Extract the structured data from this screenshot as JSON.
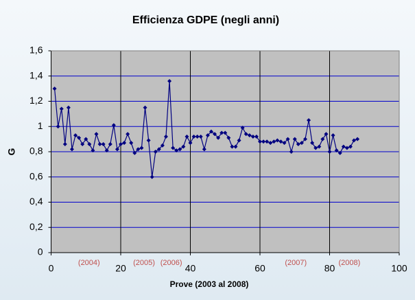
{
  "chart_data": {
    "type": "line",
    "title": "Efficienza GDPE (negli anni)",
    "x_label": "Prove (2003 al 2008)",
    "y_label": "G",
    "x": [
      1,
      2,
      3,
      4,
      5,
      6,
      7,
      8,
      9,
      10,
      11,
      12,
      13,
      14,
      15,
      16,
      17,
      18,
      19,
      20,
      21,
      22,
      23,
      24,
      25,
      26,
      27,
      28,
      29,
      30,
      31,
      32,
      33,
      34,
      35,
      36,
      37,
      38,
      39,
      40,
      41,
      42,
      43,
      44,
      45,
      46,
      47,
      48,
      49,
      50,
      51,
      52,
      53,
      54,
      55,
      56,
      57,
      58,
      59,
      60,
      61,
      62,
      63,
      64,
      65,
      66,
      67,
      68,
      69,
      70,
      71,
      72,
      73,
      74,
      75,
      76,
      77,
      78,
      79,
      80,
      81,
      82,
      83,
      84,
      85,
      86,
      87,
      88
    ],
    "values": [
      1.3,
      1.0,
      1.14,
      0.86,
      1.15,
      0.82,
      0.93,
      0.91,
      0.86,
      0.9,
      0.86,
      0.81,
      0.94,
      0.86,
      0.86,
      0.81,
      0.86,
      1.01,
      0.82,
      0.86,
      0.87,
      0.94,
      0.87,
      0.79,
      0.82,
      0.83,
      1.15,
      0.89,
      0.6,
      0.8,
      0.82,
      0.85,
      0.92,
      1.36,
      0.83,
      0.81,
      0.82,
      0.84,
      0.92,
      0.87,
      0.92,
      0.92,
      0.92,
      0.82,
      0.93,
      0.96,
      0.94,
      0.91,
      0.95,
      0.95,
      0.91,
      0.84,
      0.84,
      0.89,
      0.99,
      0.94,
      0.93,
      0.92,
      0.92,
      0.88,
      0.88,
      0.88,
      0.87,
      0.88,
      0.89,
      0.88,
      0.87,
      0.9,
      0.8,
      0.9,
      0.86,
      0.87,
      0.9,
      1.05,
      0.87,
      0.83,
      0.84,
      0.9,
      0.94,
      0.8,
      0.93,
      0.81,
      0.79,
      0.84,
      0.83,
      0.84,
      0.89,
      0.9
    ],
    "color": "#000080",
    "xlim": [
      0,
      100
    ],
    "xticks": [
      0,
      20,
      40,
      60,
      80,
      100
    ],
    "ylim": [
      0,
      1.6
    ],
    "yticks": [
      0,
      {
        "value": 0.2,
        "label": "0,2"
      },
      {
        "value": 0.4,
        "label": "0,4"
      },
      {
        "value": 0.6,
        "label": "0,6"
      },
      {
        "value": 0.8,
        "label": "0,8"
      },
      1,
      {
        "value": 1.2,
        "label": "1,2"
      },
      {
        "value": 1.4,
        "label": "1,4"
      },
      {
        "value": 1.6,
        "label": "1,6"
      }
    ],
    "grid": true,
    "grid_color": "#0000cc",
    "xgrid": true,
    "xgrid_color": "#000000",
    "plot_background": "#c0c0c0",
    "annotations": [
      {
        "text": "(2004)",
        "x": 10.9
      },
      {
        "text": "(2005)",
        "x": 26.7
      },
      {
        "text": "(2006)",
        "x": 34.5
      },
      {
        "text": "(2007)",
        "x": 70.3
      },
      {
        "text": "(2008)",
        "x": 85.7
      }
    ],
    "annotation_color": "#c0504d"
  }
}
